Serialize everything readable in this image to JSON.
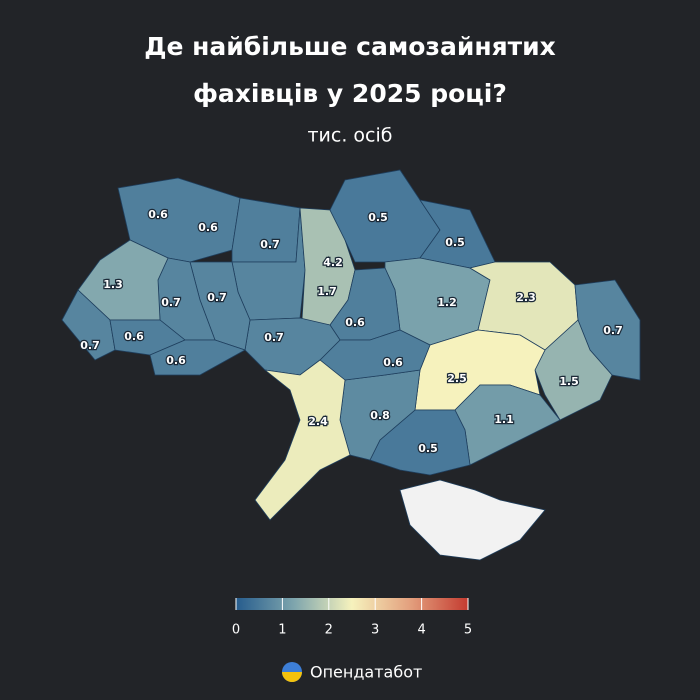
{
  "chart_data": {
    "type": "choropleth",
    "title": [
      "Де найбільше самозайнятих",
      "фахівців у 2025 році?"
    ],
    "subtitle": "тис. осіб",
    "values": [
      0.6,
      0.6,
      0.7,
      4.2,
      1.7,
      0.5,
      0.5,
      1.2,
      2.3,
      0.7,
      1.5,
      2.5,
      1.1,
      0.5,
      0.8,
      0.6,
      0.6,
      0.7,
      2.4,
      0.7,
      0.7,
      1.3,
      0.7,
      0.6,
      0.6,
      null
    ],
    "colorbar": {
      "range": [
        0,
        5
      ],
      "ticks": [
        0,
        1,
        2,
        3,
        4,
        5
      ],
      "colors": [
        "#265c8d",
        "#7ea5ad",
        "#f6f2bd",
        "#e3a07e",
        "#c43b30"
      ],
      "missing_color": "#f2f2f2"
    },
    "brand": "Опендатабот"
  }
}
